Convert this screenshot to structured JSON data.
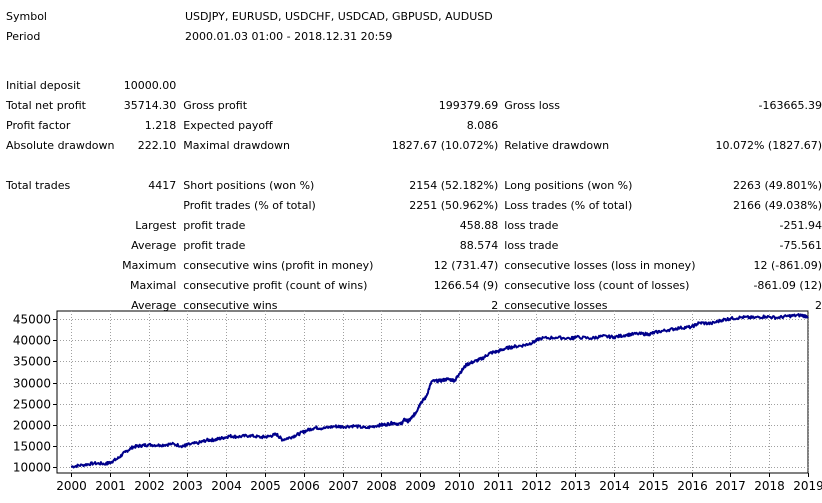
{
  "header": {
    "symbol_label": "Symbol",
    "symbol_value": "USDJPY, EURUSD, USDCHF, USDCAD, GBPUSD, AUDUSD",
    "period_label": "Period",
    "period_value": "2000.01.03 01:00 - 2018.12.31 20:59"
  },
  "stats": {
    "initial_deposit_label": "Initial deposit",
    "initial_deposit": "10000.00",
    "total_net_profit_label": "Total net profit",
    "total_net_profit": "35714.30",
    "gross_profit_label": "Gross profit",
    "gross_profit": "199379.69",
    "gross_loss_label": "Gross loss",
    "gross_loss": "-163665.39",
    "profit_factor_label": "Profit factor",
    "profit_factor": "1.218",
    "expected_payoff_label": "Expected payoff",
    "expected_payoff": "8.086",
    "absolute_drawdown_label": "Absolute drawdown",
    "absolute_drawdown": "222.10",
    "maximal_drawdown_label": "Maximal drawdown",
    "maximal_drawdown": "1827.67 (10.072%)",
    "relative_drawdown_label": "Relative drawdown",
    "relative_drawdown": "10.072% (1827.67)",
    "total_trades_label": "Total trades",
    "total_trades": "4417",
    "short_positions_label": "Short positions (won %)",
    "short_positions": "2154 (52.182%)",
    "long_positions_label": "Long positions (won %)",
    "long_positions": "2263 (49.801%)",
    "profit_trades_label": "Profit trades (% of total)",
    "profit_trades": "2251 (50.962%)",
    "loss_trades_label": "Loss trades (% of total)",
    "loss_trades": "2166 (49.038%)",
    "largest_label": "Largest",
    "largest_profit_label": "profit trade",
    "largest_profit": "458.88",
    "largest_loss_label": "loss trade",
    "largest_loss": "-251.94",
    "average_label": "Average",
    "average_profit_label": "profit trade",
    "average_profit": "88.574",
    "average_loss_label": "loss trade",
    "average_loss": "-75.561",
    "maximum_label": "Maximum",
    "max_consec_wins_label": "consecutive wins (profit in money)",
    "max_consec_wins": "12 (731.47)",
    "max_consec_losses_label": "consecutive losses (loss in money)",
    "max_consec_losses": "12 (-861.09)",
    "maximal_label": "Maximal",
    "maximal_consec_profit_label": "consecutive profit (count of wins)",
    "maximal_consec_profit": "1266.54 (9)",
    "maximal_consec_loss_label": "consecutive loss (count of losses)",
    "maximal_consec_loss": "-861.09 (12)",
    "avg_label": "Average",
    "avg_consec_wins_label": "consecutive wins",
    "avg_consec_wins": "2",
    "avg_consec_losses_label": "consecutive losses",
    "avg_consec_losses": "2"
  },
  "colors": {
    "line": "#00008b",
    "grid": "#a0a0a0",
    "frame": "#000000"
  },
  "chart_data": {
    "type": "line",
    "title": "",
    "xlabel": "",
    "ylabel": "",
    "x_ticks": [
      "2000",
      "2001",
      "2002",
      "2003",
      "2004",
      "2005",
      "2006",
      "2007",
      "2008",
      "2009",
      "2010",
      "2011",
      "2012",
      "2013",
      "2014",
      "2015",
      "2016",
      "2017",
      "2018",
      "2019"
    ],
    "y_ticks": [
      "10000",
      "15000",
      "20000",
      "25000",
      "30000",
      "35000",
      "40000",
      "45000"
    ],
    "xlim": [
      2000.0,
      2019.0
    ],
    "ylim": [
      8500,
      47000
    ],
    "grid": true,
    "legend": "none",
    "series": [
      {
        "x": [
          2000.0,
          2000.3,
          2000.6,
          2000.9,
          2001.0,
          2001.2,
          2001.4,
          2001.6,
          2001.8,
          2002.0,
          2002.3,
          2002.6,
          2002.9,
          2003.0,
          2003.3,
          2003.5,
          2003.7,
          2003.9,
          2004.1,
          2004.3,
          2004.6,
          2004.9,
          2005.1,
          2005.3,
          2005.45,
          2005.7,
          2005.9,
          2006.1,
          2006.3,
          2006.5,
          2006.8,
          2007.0,
          2007.3,
          2007.6,
          2007.9,
          2008.1,
          2008.3,
          2008.5,
          2008.6,
          2008.7,
          2008.8,
          2008.9,
          2009.0,
          2009.15,
          2009.3,
          2009.5,
          2009.7,
          2009.9,
          2010.0,
          2010.2,
          2010.4,
          2010.6,
          2010.8,
          2011.0,
          2011.2,
          2011.4,
          2011.7,
          2011.9,
          2012.1,
          2012.5,
          2012.9,
          2013.0,
          2013.4,
          2013.7,
          2014.0,
          2014.3,
          2014.6,
          2014.9,
          2015.1,
          2015.4,
          2015.7,
          2016.0,
          2016.2,
          2016.5,
          2016.8,
          2017.0,
          2017.3,
          2017.6,
          2017.9,
          2018.2,
          2018.5,
          2018.8,
          2019.0
        ],
        "y": [
          10000,
          10400,
          10800,
          10700,
          11000,
          11900,
          13500,
          14700,
          15000,
          15200,
          15100,
          15400,
          14900,
          15200,
          15700,
          16300,
          16400,
          16800,
          17300,
          17100,
          17400,
          17000,
          17200,
          17700,
          16400,
          17100,
          17900,
          18700,
          19300,
          19100,
          19600,
          19500,
          19700,
          19200,
          19800,
          20000,
          20400,
          20100,
          21200,
          20800,
          21800,
          23000,
          25000,
          26500,
          30300,
          30400,
          30800,
          30500,
          32000,
          34300,
          35000,
          35700,
          37000,
          37400,
          38100,
          38500,
          38900,
          39500,
          40500,
          40700,
          40500,
          40800,
          40500,
          41000,
          40800,
          41300,
          41600,
          41500,
          42000,
          42500,
          43000,
          43200,
          44200,
          44000,
          44900,
          45200,
          45500,
          45400,
          45700,
          45400,
          45800,
          46000,
          45700
        ]
      }
    ]
  }
}
